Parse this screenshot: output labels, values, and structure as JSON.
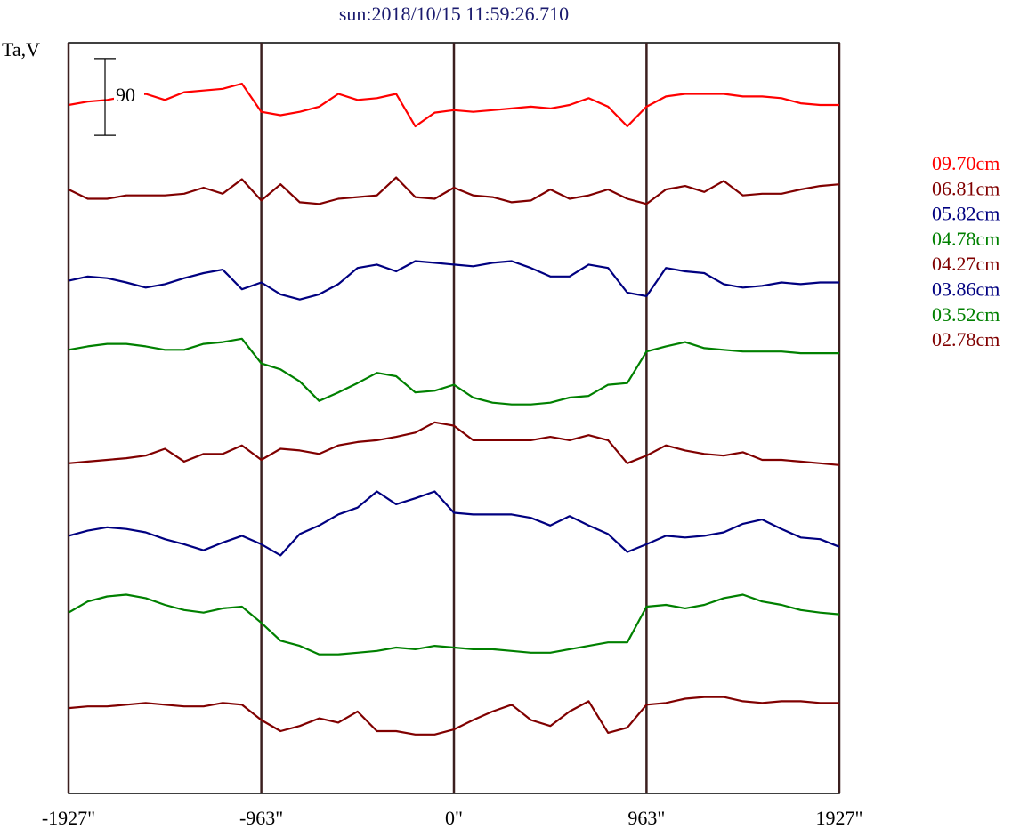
{
  "chart_data": {
    "type": "line",
    "title": "sun:2018/10/15 11:59:26.710",
    "ylabel": "Ta,V",
    "scale_bar": 90,
    "x": [
      -1927,
      -1831,
      -1734,
      -1638,
      -1541,
      -1445,
      -1349,
      -1252,
      -1156,
      -1060,
      -963,
      -867,
      -771,
      -674,
      -578,
      -482,
      -385,
      -289,
      -193,
      -96,
      0,
      96,
      193,
      289,
      385,
      482,
      578,
      674,
      771,
      867,
      963,
      1060,
      1156,
      1252,
      1349,
      1445,
      1541,
      1638,
      1734,
      1831,
      1927
    ],
    "xlim": [
      -1927,
      1927
    ],
    "xticks": [
      {
        "value": -1927,
        "label": "-1927\""
      },
      {
        "value": -963,
        "label": "-963\""
      },
      {
        "value": 0,
        "label": "0\""
      },
      {
        "value": 963,
        "label": "963\""
      },
      {
        "value": 1927,
        "label": "1927\""
      }
    ],
    "ylim": [
      0,
      880
    ],
    "grid": true,
    "grid_color": "#3b1f1f",
    "series": [
      {
        "name": "09.70cm",
        "color": "#ff0000",
        "values": [
          807,
          811,
          813,
          817,
          820,
          813,
          822,
          824,
          826,
          832,
          799,
          795,
          799,
          805,
          820,
          813,
          815,
          820,
          782,
          798,
          801,
          799,
          801,
          803,
          805,
          803,
          807,
          815,
          805,
          782,
          805,
          817,
          820,
          820,
          820,
          817,
          817,
          815,
          809,
          807,
          807
        ]
      },
      {
        "name": "06.81cm",
        "color": "#800000",
        "values": [
          708,
          697,
          697,
          701,
          701,
          701,
          703,
          710,
          703,
          720,
          695,
          714,
          693,
          691,
          697,
          699,
          701,
          722,
          699,
          697,
          710,
          701,
          699,
          693,
          695,
          708,
          697,
          701,
          708,
          697,
          691,
          708,
          712,
          705,
          718,
          701,
          703,
          703,
          708,
          712,
          714
        ]
      },
      {
        "name": "05.82cm",
        "color": "#000080",
        "values": [
          601,
          606,
          604,
          599,
          593,
          597,
          604,
          610,
          614,
          591,
          599,
          585,
          579,
          585,
          597,
          616,
          620,
          612,
          624,
          622,
          620,
          618,
          622,
          624,
          616,
          606,
          606,
          620,
          616,
          587,
          583,
          616,
          612,
          610,
          597,
          593,
          595,
          599,
          597,
          599,
          599
        ]
      },
      {
        "name": "04.78cm",
        "color": "#008000",
        "values": [
          520,
          524,
          527,
          527,
          524,
          520,
          520,
          527,
          529,
          533,
          504,
          497,
          483,
          460,
          470,
          481,
          493,
          489,
          470,
          472,
          479,
          464,
          458,
          456,
          456,
          458,
          464,
          466,
          479,
          481,
          518,
          524,
          529,
          522,
          520,
          518,
          518,
          518,
          516,
          516,
          516
        ]
      },
      {
        "name": "04.27cm",
        "color": "#800000",
        "values": [
          387,
          389,
          391,
          393,
          396,
          404,
          389,
          398,
          398,
          408,
          391,
          404,
          402,
          398,
          408,
          412,
          414,
          418,
          423,
          435,
          431,
          414,
          414,
          414,
          414,
          418,
          414,
          420,
          414,
          387,
          396,
          408,
          402,
          398,
          396,
          400,
          391,
          391,
          389,
          387,
          385
        ]
      },
      {
        "name": "03.86cm",
        "color": "#000080",
        "values": [
          302,
          308,
          312,
          310,
          306,
          298,
          292,
          285,
          294,
          302,
          292,
          279,
          304,
          314,
          327,
          335,
          354,
          339,
          346,
          354,
          329,
          327,
          327,
          327,
          323,
          314,
          325,
          314,
          304,
          283,
          292,
          302,
          300,
          302,
          306,
          316,
          321,
          310,
          300,
          298,
          289
        ]
      },
      {
        "name": "03.52cm",
        "color": "#008000",
        "values": [
          212,
          225,
          231,
          233,
          229,
          221,
          215,
          212,
          217,
          219,
          200,
          179,
          173,
          163,
          163,
          165,
          167,
          171,
          169,
          173,
          171,
          169,
          169,
          167,
          165,
          165,
          169,
          173,
          177,
          177,
          219,
          221,
          217,
          221,
          229,
          233,
          225,
          221,
          215,
          212,
          210
        ]
      },
      {
        "name": "02.78cm",
        "color": "#800000",
        "values": [
          100,
          102,
          102,
          104,
          106,
          104,
          102,
          102,
          106,
          104,
          86,
          73,
          79,
          88,
          83,
          96,
          73,
          73,
          69,
          69,
          75,
          86,
          96,
          104,
          86,
          79,
          96,
          108,
          71,
          77,
          104,
          106,
          111,
          113,
          113,
          108,
          106,
          108,
          108,
          106,
          106
        ]
      }
    ]
  }
}
